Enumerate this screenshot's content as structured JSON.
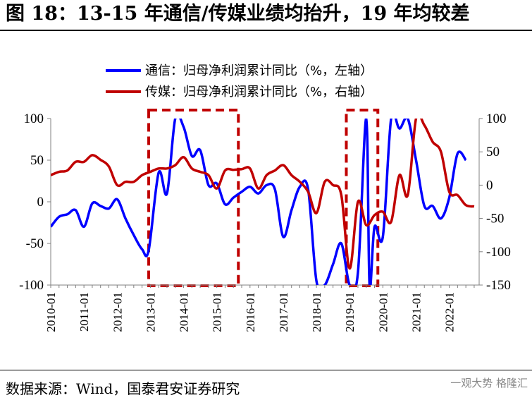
{
  "title": "图 18：13-15 年通信/传媒业绩均抬升，19 年均较差",
  "source": "数据来源：Wind，国泰君安证券研究",
  "watermark": "一观大势 格隆汇",
  "chart_data": {
    "type": "line",
    "legend": [
      {
        "name": "通信：归母净利润累计同比（%，左轴）",
        "color": "#0000ff"
      },
      {
        "name": "传媒：归母净利润累计同比（%，右轴）",
        "color": "#c00000"
      }
    ],
    "left_axis": {
      "ticks": [
        "100",
        "50",
        "0",
        "-50",
        "-100"
      ],
      "range": [
        -100,
        100
      ]
    },
    "right_axis": {
      "ticks": [
        "100",
        "50",
        "0",
        "-50",
        "-100",
        "-150"
      ],
      "range": [
        -150,
        100
      ]
    },
    "x_ticks": [
      "2010-01",
      "2011-01",
      "2012-01",
      "2013-01",
      "2014-01",
      "2015-01",
      "2016-01",
      "2017-01",
      "2018-01",
      "2019-01",
      "2020-01",
      "2021-01",
      "2022-01"
    ],
    "x_range": [
      2010.0,
      2022.9
    ],
    "series": [
      {
        "name": "通信：归母净利润累计同比（%，左轴）",
        "axis": "left",
        "color": "#0000ff",
        "points": [
          [
            2010.0,
            -30
          ],
          [
            2010.25,
            -18
          ],
          [
            2010.5,
            -15
          ],
          [
            2010.75,
            -10
          ],
          [
            2011.0,
            -30
          ],
          [
            2011.25,
            -2
          ],
          [
            2011.5,
            -5
          ],
          [
            2011.75,
            -8
          ],
          [
            2012.0,
            3
          ],
          [
            2012.25,
            -20
          ],
          [
            2012.5,
            -40
          ],
          [
            2012.75,
            -57
          ],
          [
            2012.95,
            -58
          ],
          [
            2013.25,
            35
          ],
          [
            2013.5,
            10
          ],
          [
            2013.75,
            100
          ],
          [
            2014.0,
            90
          ],
          [
            2014.25,
            55
          ],
          [
            2014.5,
            62
          ],
          [
            2014.75,
            20
          ],
          [
            2015.0,
            22
          ],
          [
            2015.25,
            -3
          ],
          [
            2015.5,
            5
          ],
          [
            2015.75,
            12
          ],
          [
            2016.0,
            18
          ],
          [
            2016.25,
            10
          ],
          [
            2016.5,
            20
          ],
          [
            2016.75,
            15
          ],
          [
            2017.0,
            -42
          ],
          [
            2017.25,
            -10
          ],
          [
            2017.5,
            18
          ],
          [
            2017.75,
            15
          ],
          [
            2018.0,
            -95
          ],
          [
            2018.25,
            -100
          ],
          [
            2018.5,
            -75
          ],
          [
            2018.75,
            -50
          ],
          [
            2019.0,
            -100
          ],
          [
            2019.25,
            -85
          ],
          [
            2019.5,
            100
          ],
          [
            2019.6,
            -100
          ],
          [
            2019.75,
            -30
          ],
          [
            2020.0,
            -42
          ],
          [
            2020.25,
            100
          ],
          [
            2020.5,
            88
          ],
          [
            2020.75,
            100
          ],
          [
            2021.0,
            50
          ],
          [
            2021.25,
            -5
          ],
          [
            2021.5,
            -5
          ],
          [
            2021.75,
            -20
          ],
          [
            2022.0,
            5
          ],
          [
            2022.25,
            58
          ],
          [
            2022.5,
            50
          ]
        ]
      },
      {
        "name": "传媒：归母净利润累计同比（%，右轴）",
        "axis": "right",
        "color": "#c00000",
        "points": [
          [
            2010.0,
            15
          ],
          [
            2010.25,
            20
          ],
          [
            2010.5,
            22
          ],
          [
            2010.75,
            35
          ],
          [
            2011.0,
            35
          ],
          [
            2011.25,
            45
          ],
          [
            2011.5,
            38
          ],
          [
            2011.75,
            28
          ],
          [
            2012.0,
            0
          ],
          [
            2012.25,
            5
          ],
          [
            2012.5,
            5
          ],
          [
            2012.75,
            15
          ],
          [
            2013.0,
            20
          ],
          [
            2013.25,
            25
          ],
          [
            2013.5,
            25
          ],
          [
            2013.75,
            30
          ],
          [
            2014.0,
            42
          ],
          [
            2014.25,
            25
          ],
          [
            2014.5,
            20
          ],
          [
            2014.75,
            15
          ],
          [
            2015.0,
            -5
          ],
          [
            2015.25,
            22
          ],
          [
            2015.5,
            23
          ],
          [
            2015.75,
            24
          ],
          [
            2016.0,
            25
          ],
          [
            2016.25,
            -5
          ],
          [
            2016.5,
            15
          ],
          [
            2016.75,
            22
          ],
          [
            2017.0,
            30
          ],
          [
            2017.25,
            15
          ],
          [
            2017.5,
            5
          ],
          [
            2017.75,
            -10
          ],
          [
            2018.0,
            -42
          ],
          [
            2018.25,
            5
          ],
          [
            2018.5,
            0
          ],
          [
            2018.75,
            -15
          ],
          [
            2019.0,
            -125
          ],
          [
            2019.25,
            -25
          ],
          [
            2019.5,
            -60
          ],
          [
            2019.75,
            -45
          ],
          [
            2020.0,
            -40
          ],
          [
            2020.25,
            -55
          ],
          [
            2020.5,
            15
          ],
          [
            2020.75,
            -15
          ],
          [
            2021.0,
            100
          ],
          [
            2021.25,
            90
          ],
          [
            2021.5,
            65
          ],
          [
            2021.75,
            50
          ],
          [
            2022.0,
            -10
          ],
          [
            2022.25,
            -15
          ],
          [
            2022.5,
            -30
          ],
          [
            2022.75,
            -32
          ]
        ]
      }
    ],
    "highlight_boxes": [
      {
        "x_start": 2012.95,
        "x_end": 2015.65,
        "color": "#c00000"
      },
      {
        "x_start": 2018.9,
        "x_end": 2019.85,
        "color": "#c00000"
      }
    ]
  }
}
